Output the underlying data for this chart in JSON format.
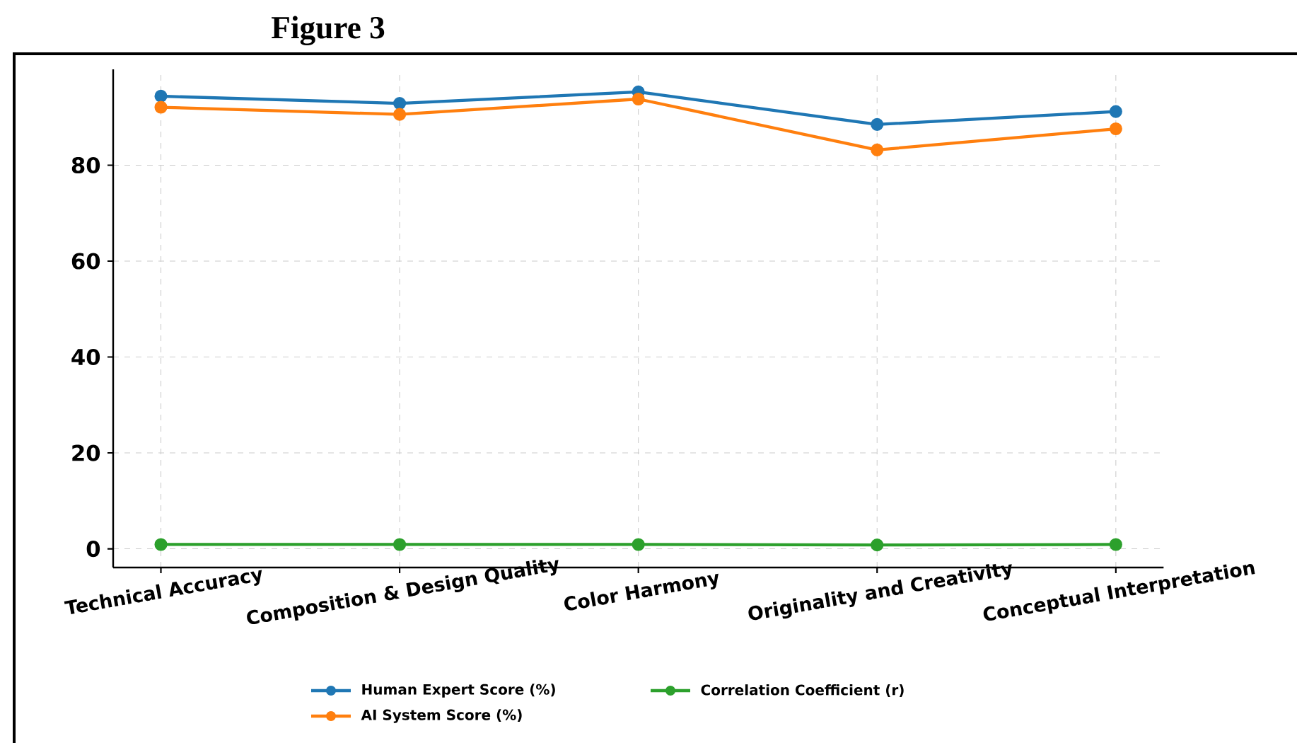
{
  "chart_data": {
    "type": "line",
    "title": "Figure 3",
    "categories": [
      "Technical Accuracy",
      "Composition & Design Quality",
      "Color Harmony",
      "Originality and Creativity",
      "Conceptual Interpretation"
    ],
    "series": [
      {
        "name": "Human Expert Score (%)",
        "color": "#1f77b4",
        "values": [
          94.4,
          92.9,
          95.3,
          88.5,
          91.2
        ]
      },
      {
        "name": "AI System Score (%)",
        "color": "#ff7f0e",
        "values": [
          92.1,
          90.6,
          93.8,
          83.2,
          87.6
        ]
      },
      {
        "name": "Correlation Coefficient (r)",
        "color": "#2ca02c",
        "values": [
          0.9,
          0.9,
          0.9,
          0.8,
          0.9
        ]
      }
    ],
    "ylim": [
      -3.9,
      100
    ],
    "yticks": [
      0,
      20,
      40,
      60,
      80
    ],
    "grid": true,
    "legend": "bottom",
    "marker": "circle",
    "line_style": "solid"
  }
}
